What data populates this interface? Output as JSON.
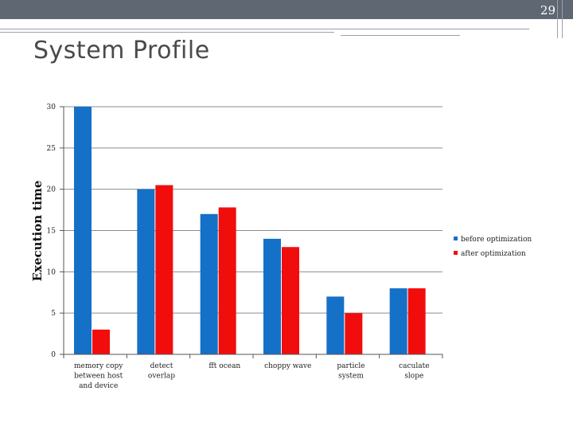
{
  "slide": {
    "number": "29",
    "title": "System Profile"
  },
  "colors": {
    "header_bar": "#5f6773",
    "before": "#1570c8",
    "after": "#f20d0d"
  },
  "chart_data": {
    "type": "bar",
    "title": "",
    "xlabel": "",
    "ylabel": "Execution time",
    "ylim": [
      0,
      30
    ],
    "yticks": [
      "0",
      "5",
      "10",
      "15",
      "20",
      "25",
      "30"
    ],
    "grid": true,
    "legend_position": "right",
    "categories": [
      "memory copy between host and device",
      "detect overlap",
      "fft ocean",
      "choppy wave",
      "particle system",
      "caculate slope"
    ],
    "series": [
      {
        "name": "before optimization",
        "values": [
          30,
          20,
          17,
          14,
          7,
          8
        ]
      },
      {
        "name": "after optimization",
        "values": [
          3,
          20.5,
          17.8,
          13,
          5,
          8
        ]
      }
    ]
  }
}
